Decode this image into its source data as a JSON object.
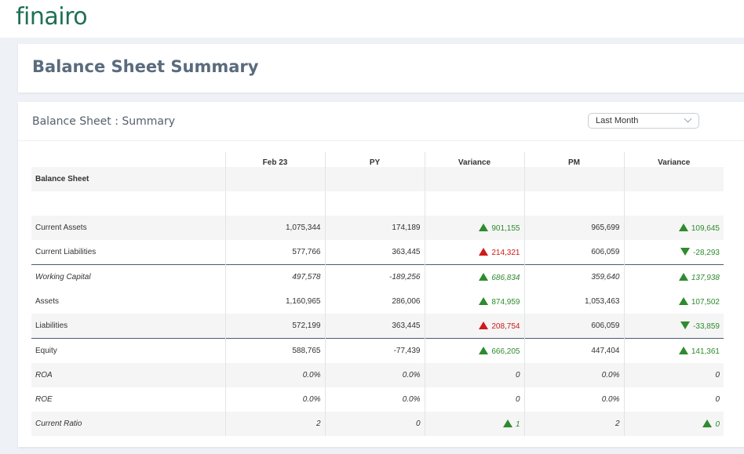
{
  "brand": {
    "logo_text": "finairo",
    "logo_color": "#1f6f55"
  },
  "page": {
    "title": "Balance Sheet Summary"
  },
  "panel": {
    "title": "Balance Sheet : Summary",
    "period_select": {
      "selected": "Last Month"
    }
  },
  "table": {
    "section_label": "Balance Sheet",
    "columns": [
      "",
      "Feb 23",
      "PY",
      "Variance",
      "PM",
      "Variance"
    ],
    "rows": [
      {
        "label": "Current Assets",
        "feb": "1,075,344",
        "py": "174,189",
        "var_py": "901,155",
        "var_py_dir": "up",
        "var_py_tone": "pos",
        "pm": "965,699",
        "var_pm": "109,645",
        "var_pm_dir": "up",
        "var_pm_tone": "pos"
      },
      {
        "label": "Current Liabilities",
        "feb": "577,766",
        "py": "363,445",
        "var_py": "214,321",
        "var_py_dir": "up",
        "var_py_tone": "neg",
        "pm": "606,059",
        "var_pm": "-28,293",
        "var_pm_dir": "down",
        "var_pm_tone": "pos"
      },
      {
        "label": "Working Capital",
        "feb": "497,578",
        "py": "-189,256",
        "var_py": "686,834",
        "var_py_dir": "up",
        "var_py_tone": "pos",
        "pm": "359,640",
        "var_pm": "137,938",
        "var_pm_dir": "up",
        "var_pm_tone": "pos"
      },
      {
        "label": "Assets",
        "feb": "1,160,965",
        "py": "286,006",
        "var_py": "874,959",
        "var_py_dir": "up",
        "var_py_tone": "pos",
        "pm": "1,053,463",
        "var_pm": "107,502",
        "var_pm_dir": "up",
        "var_pm_tone": "pos"
      },
      {
        "label": "Liabilities",
        "feb": "572,199",
        "py": "363,445",
        "var_py": "208,754",
        "var_py_dir": "up",
        "var_py_tone": "neg",
        "pm": "606,059",
        "var_pm": "-33,859",
        "var_pm_dir": "down",
        "var_pm_tone": "pos"
      },
      {
        "label": "Equity",
        "feb": "588,765",
        "py": "-77,439",
        "var_py": "666,205",
        "var_py_dir": "up",
        "var_py_tone": "pos",
        "pm": "447,404",
        "var_pm": "141,361",
        "var_pm_dir": "up",
        "var_pm_tone": "pos"
      },
      {
        "label": "ROA",
        "feb": "0.0%",
        "py": "0.0%",
        "var_py": "0",
        "var_py_dir": "none",
        "var_py_tone": "neutral",
        "pm": "0.0%",
        "var_pm": "0",
        "var_pm_dir": "none",
        "var_pm_tone": "neutral"
      },
      {
        "label": "ROE",
        "feb": "0.0%",
        "py": "0.0%",
        "var_py": "0",
        "var_py_dir": "none",
        "var_py_tone": "neutral",
        "pm": "0.0%",
        "var_pm": "0",
        "var_pm_dir": "none",
        "var_pm_tone": "neutral"
      },
      {
        "label": "Current Ratio",
        "feb": "2",
        "py": "0",
        "var_py": "1",
        "var_py_dir": "up",
        "var_py_tone": "pos",
        "pm": "2",
        "var_pm": "0",
        "var_pm_dir": "up",
        "var_pm_tone": "pos"
      }
    ]
  },
  "colors": {
    "positive": "#2e8b2e",
    "negative": "#d11a1a",
    "divider": "#4a5a73"
  }
}
